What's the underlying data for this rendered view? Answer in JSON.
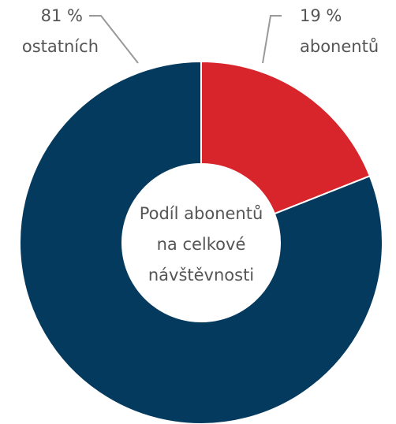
{
  "chart_data": {
    "type": "donut",
    "categories": [
      "abonentů",
      "ostatních"
    ],
    "values": [
      19,
      81
    ],
    "value_labels": [
      "19 %",
      "81 %"
    ],
    "colors": [
      "#d7252b",
      "#053a5f"
    ],
    "center_text": [
      "Podíl abonentů",
      "na celkové",
      "návštěvnosti"
    ]
  }
}
